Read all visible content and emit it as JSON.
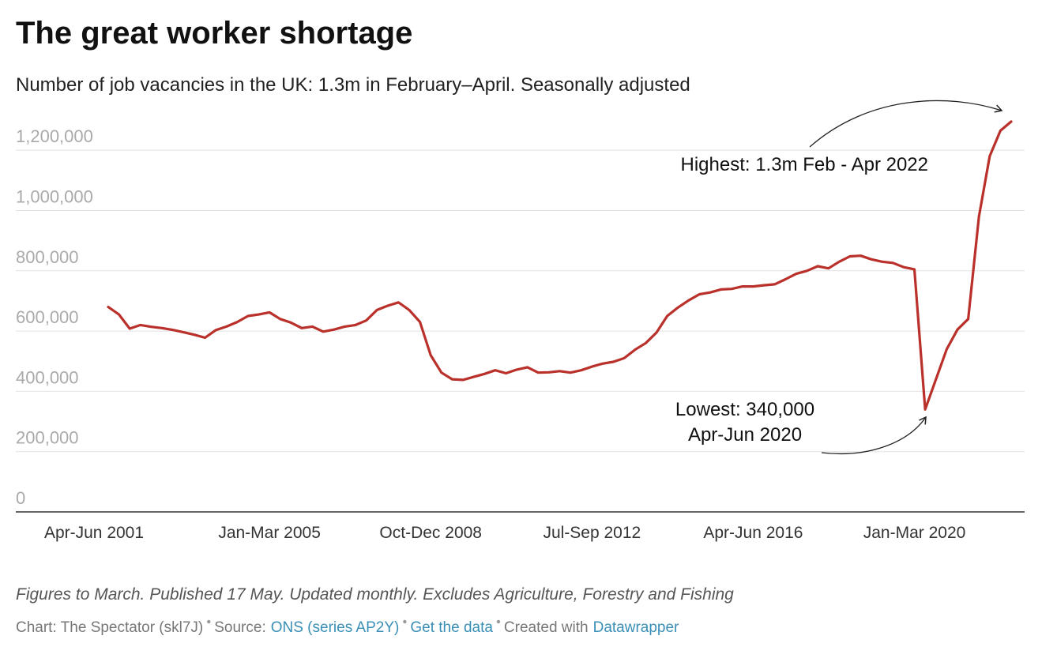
{
  "chart_data": {
    "type": "line",
    "title": "The great worker shortage",
    "subtitle": "Number of job vacancies in the UK: 1.3m in February–April. Seasonally adjusted",
    "categories": [
      "Apr-Jun 2001",
      null,
      null,
      null,
      null,
      null,
      null,
      null,
      null,
      null,
      null,
      null,
      null,
      null,
      null,
      "Jan-Mar 2005",
      null,
      null,
      null,
      null,
      null,
      null,
      null,
      null,
      null,
      null,
      null,
      null,
      null,
      null,
      "Oct-Dec 2008",
      null,
      null,
      null,
      null,
      null,
      null,
      null,
      null,
      null,
      null,
      null,
      null,
      null,
      null,
      "Jul-Sep 2012",
      null,
      null,
      null,
      null,
      null,
      null,
      null,
      null,
      null,
      null,
      null,
      null,
      null,
      null,
      "Apr-Jun 2016",
      null,
      null,
      null,
      null,
      null,
      null,
      null,
      null,
      null,
      null,
      null,
      null,
      null,
      null,
      "Jan-Mar 2020",
      null,
      null,
      null,
      null,
      null,
      null,
      null,
      null,
      null
    ],
    "values": [
      680000,
      655000,
      608000,
      620000,
      614000,
      610000,
      604000,
      596000,
      588000,
      578000,
      603000,
      615000,
      630000,
      650000,
      655000,
      662000,
      640000,
      628000,
      610000,
      615000,
      598000,
      605000,
      615000,
      620000,
      635000,
      670000,
      684000,
      695000,
      670000,
      630000,
      520000,
      462000,
      440000,
      438000,
      448000,
      458000,
      470000,
      460000,
      472000,
      480000,
      462000,
      463000,
      467000,
      462000,
      470000,
      482000,
      492000,
      498000,
      510000,
      538000,
      560000,
      595000,
      650000,
      678000,
      702000,
      722000,
      728000,
      738000,
      740000,
      748000,
      748000,
      752000,
      755000,
      772000,
      790000,
      800000,
      815000,
      808000,
      830000,
      848000,
      850000,
      838000,
      830000,
      826000,
      812000,
      805000,
      340000,
      440000,
      540000,
      605000,
      640000,
      980000,
      1180000,
      1265000,
      1295000
    ],
    "color": "#b9312a",
    "ylim": [
      0,
      1300000
    ],
    "yticks": [
      0,
      {
        "value": 200000,
        "label": "200,000"
      },
      {
        "value": 400000,
        "label": "400,000"
      },
      {
        "value": 600000,
        "label": "600,000"
      },
      {
        "value": 800000,
        "label": "800,000"
      },
      {
        "value": 1000000,
        "label": "1,000,000"
      },
      {
        "value": 1200000,
        "label": "1,200,000"
      }
    ],
    "grid": true,
    "annotations": {
      "high": "Highest: 1.3m Feb - Apr 2022",
      "low": [
        "Lowest: 340,000",
        "Apr-Jun 2020"
      ]
    },
    "note": "Figures to March. Published 17 May. Updated monthly. Excludes Agriculture, Forestry and Fishing",
    "credits": [
      "Chart: The Spectator (skl7J)",
      "Source:",
      "ONS (series AP2Y)",
      "Get the data",
      "Created with",
      "Datawrapper"
    ]
  }
}
